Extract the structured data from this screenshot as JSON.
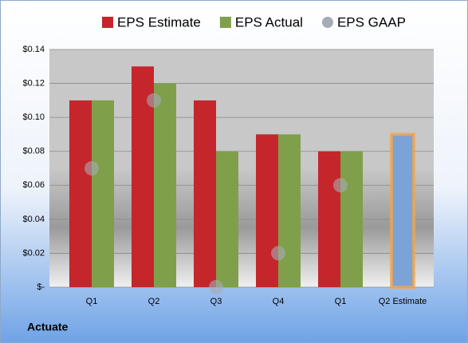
{
  "chart_data": {
    "type": "bar",
    "categories": [
      "Q1",
      "Q2",
      "Q3",
      "Q4",
      "Q1",
      "Q2 Estimate"
    ],
    "series": [
      {
        "name": "EPS Estimate",
        "color": "#c4262c",
        "colors": [
          "#c4262c",
          "#c4262c",
          "#c4262c",
          "#c4262c",
          "#c4262c",
          "#7ba3d8"
        ],
        "values": [
          0.11,
          0.13,
          0.11,
          0.09,
          0.08,
          0.09
        ]
      },
      {
        "name": "EPS Actual",
        "color": "#7f9f4a",
        "values": [
          0.11,
          0.12,
          0.08,
          0.09,
          0.08,
          null
        ]
      },
      {
        "name": "EPS GAAP",
        "color": "#a6acb4",
        "marker": "circle",
        "values": [
          0.07,
          0.11,
          0,
          0.02,
          0.06,
          null
        ]
      }
    ],
    "highlight_stroke": "#f4a64c",
    "ylim": [
      0,
      0.14
    ],
    "yticks": [
      {
        "value": 0,
        "label": "$-"
      },
      {
        "value": 0.02,
        "label": "$0.02"
      },
      {
        "value": 0.04,
        "label": "$0.04"
      },
      {
        "value": 0.06,
        "label": "$0.06"
      },
      {
        "value": 0.08,
        "label": "$0.08"
      },
      {
        "value": 0.1,
        "label": "$0.10"
      },
      {
        "value": 0.12,
        "label": "$0.12"
      },
      {
        "value": 0.14,
        "label": "$0.14"
      }
    ],
    "grid": true,
    "legend": "top",
    "footer": "Actuate"
  }
}
